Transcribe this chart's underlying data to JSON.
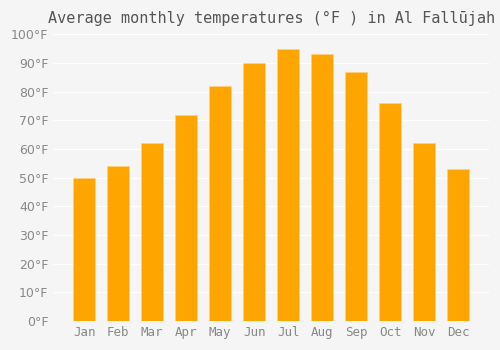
{
  "title": "Average monthly temperatures (°F ) in Al Fallūjah",
  "months": [
    "Jan",
    "Feb",
    "Mar",
    "Apr",
    "May",
    "Jun",
    "Jul",
    "Aug",
    "Sep",
    "Oct",
    "Nov",
    "Dec"
  ],
  "values": [
    50,
    54,
    62,
    72,
    82,
    90,
    95,
    93,
    87,
    76,
    62,
    53
  ],
  "bar_color": "#FFA500",
  "bar_edge_color": "#FFD080",
  "ylim": [
    0,
    100
  ],
  "yticks": [
    0,
    10,
    20,
    30,
    40,
    50,
    60,
    70,
    80,
    90,
    100
  ],
  "background_color": "#f5f5f5",
  "grid_color": "#ffffff",
  "title_fontsize": 11,
  "tick_fontsize": 9
}
